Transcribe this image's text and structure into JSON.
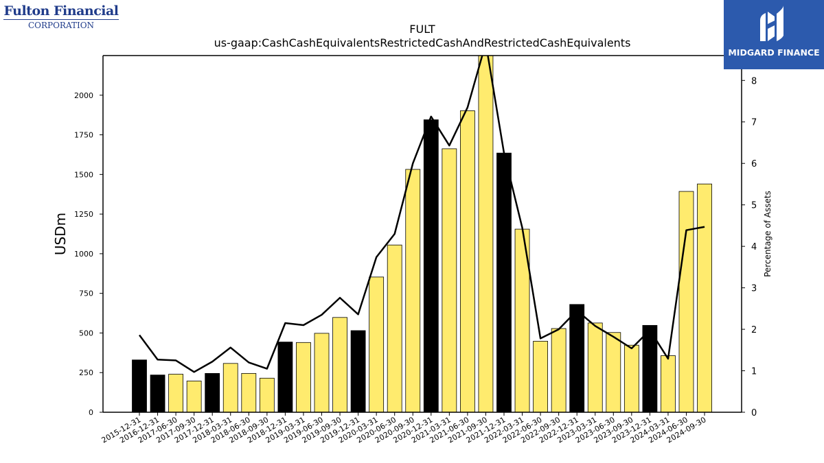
{
  "logos": {
    "left_name": "Fulton Financial",
    "left_sub": "CORPORATION",
    "right_name": "MIDGARD FINANCE"
  },
  "colors": {
    "highlight_bar": "#000000",
    "normal_bar": "#ffeb6e",
    "line": "#000000",
    "logo_blue": "#2c5aad",
    "logo_text": "#1f3b8a"
  },
  "chart_data": {
    "type": "bar",
    "title": "FULT",
    "subtitle": "us-gaap:CashCashEquivalentsRestrictedCashAndRestrictedCashEquivalents",
    "ylabel": "USDm",
    "y2label": "Percentage of Assets",
    "ylim": [
      0,
      2250
    ],
    "y2lim": [
      0,
      8.6
    ],
    "yticks": [
      0,
      250,
      500,
      750,
      1000,
      1250,
      1500,
      1750,
      2000
    ],
    "y2ticks": [
      0,
      1,
      2,
      3,
      4,
      5,
      6,
      7,
      8
    ],
    "grid": false,
    "categories": [
      "2015-12-31",
      "2016-12-31",
      "2017-06-30",
      "2017-09-30",
      "2017-12-31",
      "2018-03-31",
      "2018-06-30",
      "2018-09-30",
      "2018-12-31",
      "2019-03-31",
      "2019-06-30",
      "2019-09-30",
      "2019-12-31",
      "2020-03-31",
      "2020-06-30",
      "2020-09-30",
      "2020-12-31",
      "2021-03-31",
      "2021-06-30",
      "2021-09-30",
      "2021-12-31",
      "2022-03-31",
      "2022-06-30",
      "2022-09-30",
      "2022-12-31",
      "2023-03-31",
      "2023-06-30",
      "2023-09-30",
      "2023-12-31",
      "2024-03-31",
      "2024-06-30",
      "2024-09-30"
    ],
    "series": [
      {
        "type": "bar",
        "values": [
          330,
          235,
          240,
          197,
          245,
          308,
          245,
          215,
          443,
          440,
          498,
          598,
          515,
          853,
          1055,
          1532,
          1845,
          1662,
          1902,
          2250,
          1635,
          1155,
          448,
          528,
          680,
          563,
          503,
          423,
          548,
          357,
          1393,
          1440
        ],
        "highlight": [
          true,
          true,
          false,
          false,
          true,
          false,
          false,
          false,
          true,
          false,
          false,
          false,
          true,
          false,
          false,
          false,
          true,
          false,
          false,
          false,
          true,
          false,
          false,
          false,
          true,
          false,
          false,
          false,
          true,
          false,
          false,
          false
        ]
      },
      {
        "type": "line",
        "axis": "right",
        "values": [
          1.86,
          1.27,
          1.25,
          0.97,
          1.22,
          1.56,
          1.2,
          1.05,
          2.15,
          2.1,
          2.35,
          2.76,
          2.36,
          3.74,
          4.3,
          6.0,
          7.13,
          6.43,
          7.35,
          8.9,
          6.25,
          4.45,
          1.78,
          2.0,
          2.45,
          2.08,
          1.82,
          1.54,
          1.98,
          1.29,
          4.39,
          4.47
        ]
      }
    ]
  }
}
